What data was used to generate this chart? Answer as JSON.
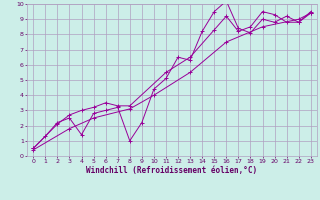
{
  "xlabel": "Windchill (Refroidissement éolien,°C)",
  "bg_color": "#cceee8",
  "grid_color": "#b0a0c0",
  "line_color": "#990099",
  "xlim": [
    -0.5,
    23.5
  ],
  "ylim": [
    0,
    10
  ],
  "xticks": [
    0,
    1,
    2,
    3,
    4,
    5,
    6,
    7,
    8,
    9,
    10,
    11,
    12,
    13,
    14,
    15,
    16,
    17,
    18,
    19,
    20,
    21,
    22,
    23
  ],
  "yticks": [
    0,
    1,
    2,
    3,
    4,
    5,
    6,
    7,
    8,
    9,
    10
  ],
  "line1_x": [
    0,
    1,
    2,
    3,
    4,
    5,
    6,
    7,
    8,
    9,
    10,
    11,
    12,
    13,
    14,
    15,
    16,
    17,
    18,
    19,
    20,
    21,
    22,
    23
  ],
  "line1_y": [
    0.5,
    1.3,
    2.2,
    2.5,
    1.4,
    2.8,
    3.0,
    3.2,
    1.0,
    2.2,
    4.4,
    5.1,
    6.5,
    6.3,
    8.2,
    9.5,
    10.2,
    8.4,
    8.1,
    9.0,
    8.8,
    9.2,
    8.8,
    9.5
  ],
  "line2_x": [
    0,
    2,
    3,
    4,
    5,
    6,
    7,
    8,
    11,
    13,
    15,
    16,
    17,
    18,
    19,
    20,
    21,
    22,
    23
  ],
  "line2_y": [
    0.5,
    2.1,
    2.7,
    3.0,
    3.2,
    3.5,
    3.3,
    3.3,
    5.5,
    6.5,
    8.3,
    9.2,
    8.2,
    8.5,
    9.5,
    9.3,
    8.8,
    8.8,
    9.4
  ],
  "line3_x": [
    0,
    3,
    5,
    8,
    10,
    13,
    16,
    19,
    22,
    23
  ],
  "line3_y": [
    0.4,
    1.8,
    2.5,
    3.1,
    4.0,
    5.5,
    7.5,
    8.5,
    9.0,
    9.4
  ],
  "tick_fontsize": 4.5,
  "xlabel_fontsize": 5.5,
  "label_color": "#660066"
}
